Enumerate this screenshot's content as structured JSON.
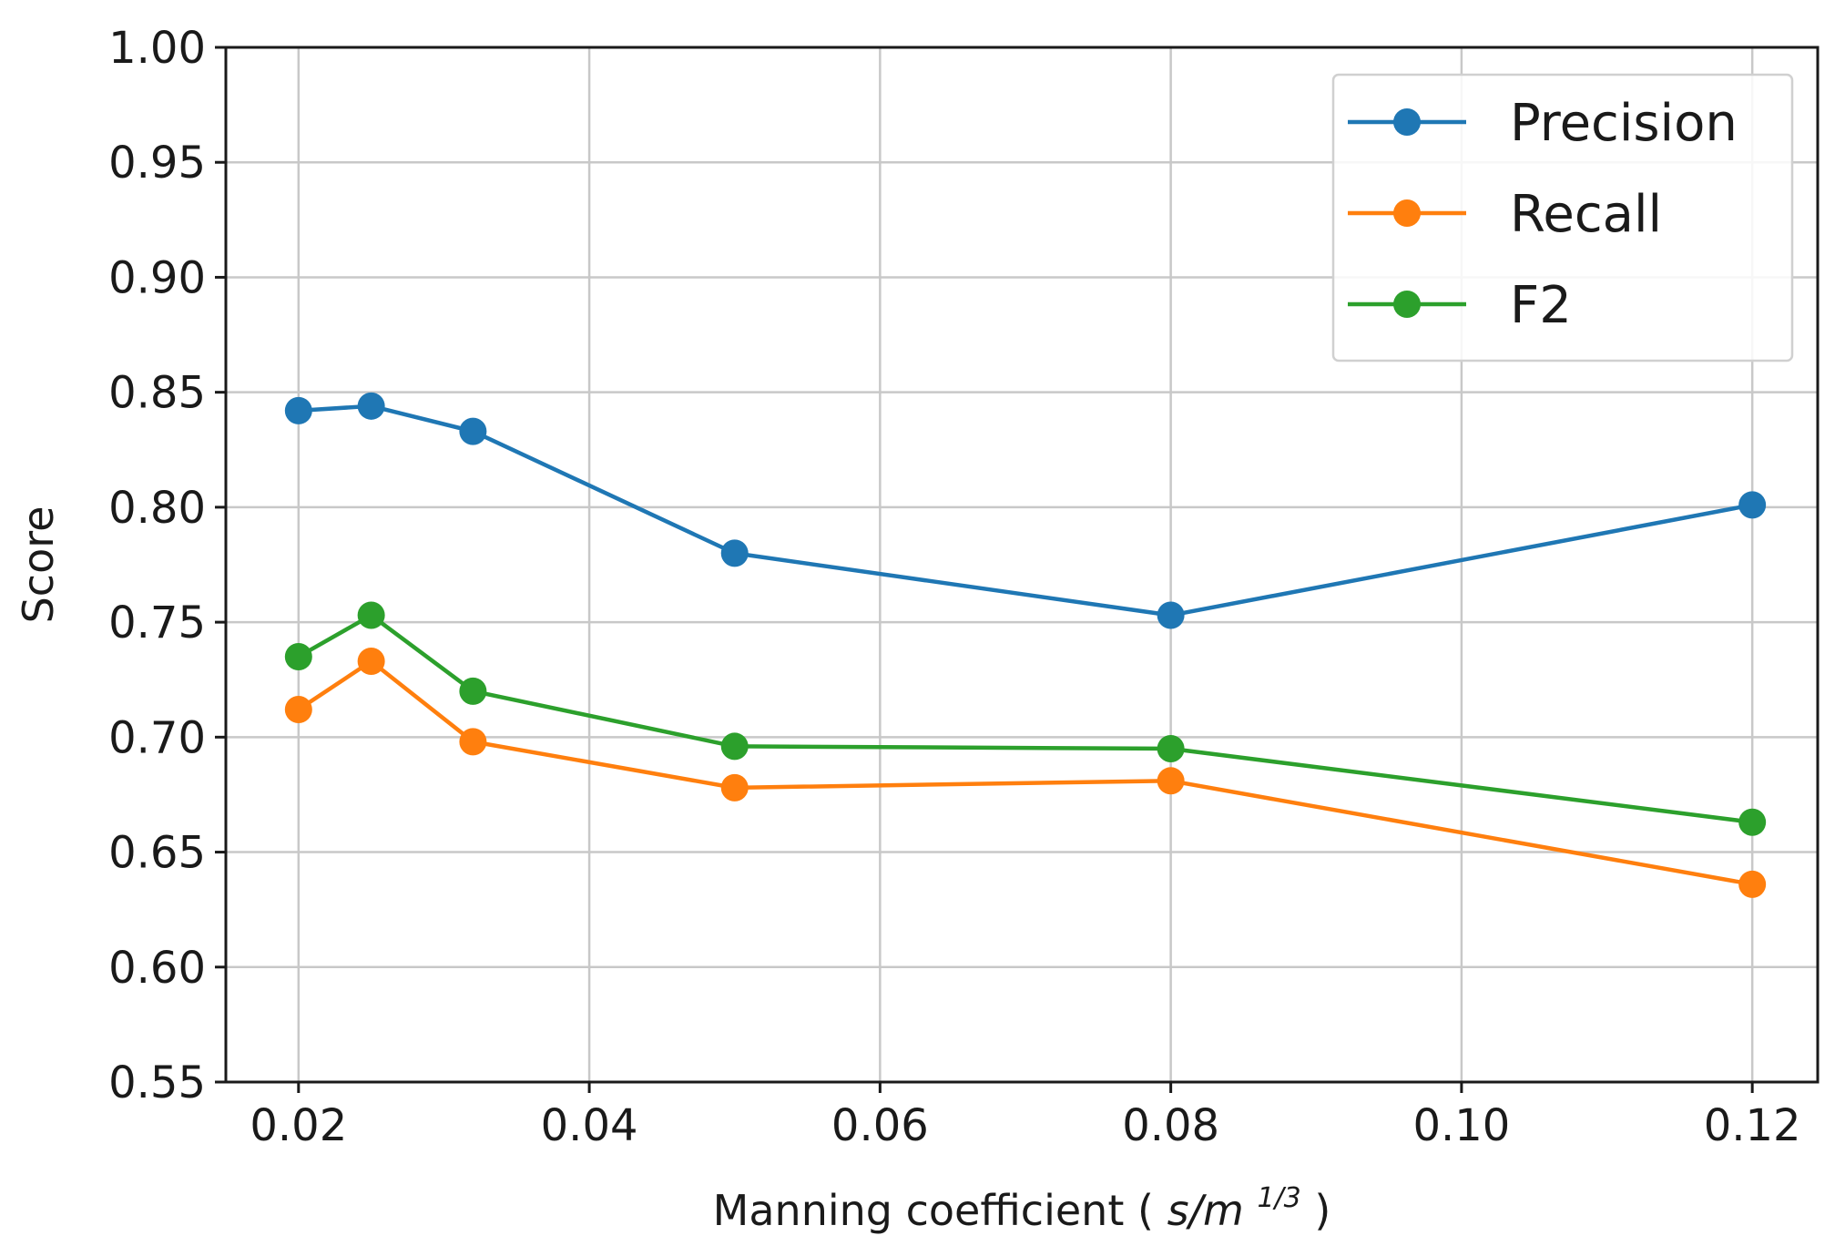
{
  "chart_data": {
    "type": "line",
    "title": "",
    "xlabel": "Manning coefficient",
    "xlabel_unit": "s/m",
    "xlabel_exponent": "1/3",
    "ylabel": "Score",
    "xlim": [
      0.015,
      0.1245
    ],
    "ylim": [
      0.55,
      1.0
    ],
    "grid": true,
    "legend_position": "top-right",
    "x_ticks": [
      0.02,
      0.04,
      0.06,
      0.08,
      0.1,
      0.12
    ],
    "x_tick_labels": [
      "0.02",
      "0.04",
      "0.06",
      "0.08",
      "0.10",
      "0.12"
    ],
    "y_ticks": [
      0.55,
      0.6,
      0.65,
      0.7,
      0.75,
      0.8,
      0.85,
      0.9,
      0.95,
      1.0
    ],
    "y_tick_labels": [
      "0.55",
      "0.60",
      "0.65",
      "0.70",
      "0.75",
      "0.80",
      "0.85",
      "0.90",
      "0.95",
      "1.00"
    ],
    "x": [
      0.02,
      0.025,
      0.032,
      0.05,
      0.08,
      0.12
    ],
    "series": [
      {
        "name": "Precision",
        "color": "#1f77b4",
        "values": [
          0.842,
          0.844,
          0.833,
          0.78,
          0.753,
          0.801
        ]
      },
      {
        "name": "Recall",
        "color": "#ff7f0e",
        "values": [
          0.712,
          0.733,
          0.698,
          0.678,
          0.681,
          0.636
        ]
      },
      {
        "name": "F2",
        "color": "#2ca02c",
        "values": [
          0.735,
          0.753,
          0.72,
          0.696,
          0.695,
          0.663
        ]
      }
    ]
  }
}
